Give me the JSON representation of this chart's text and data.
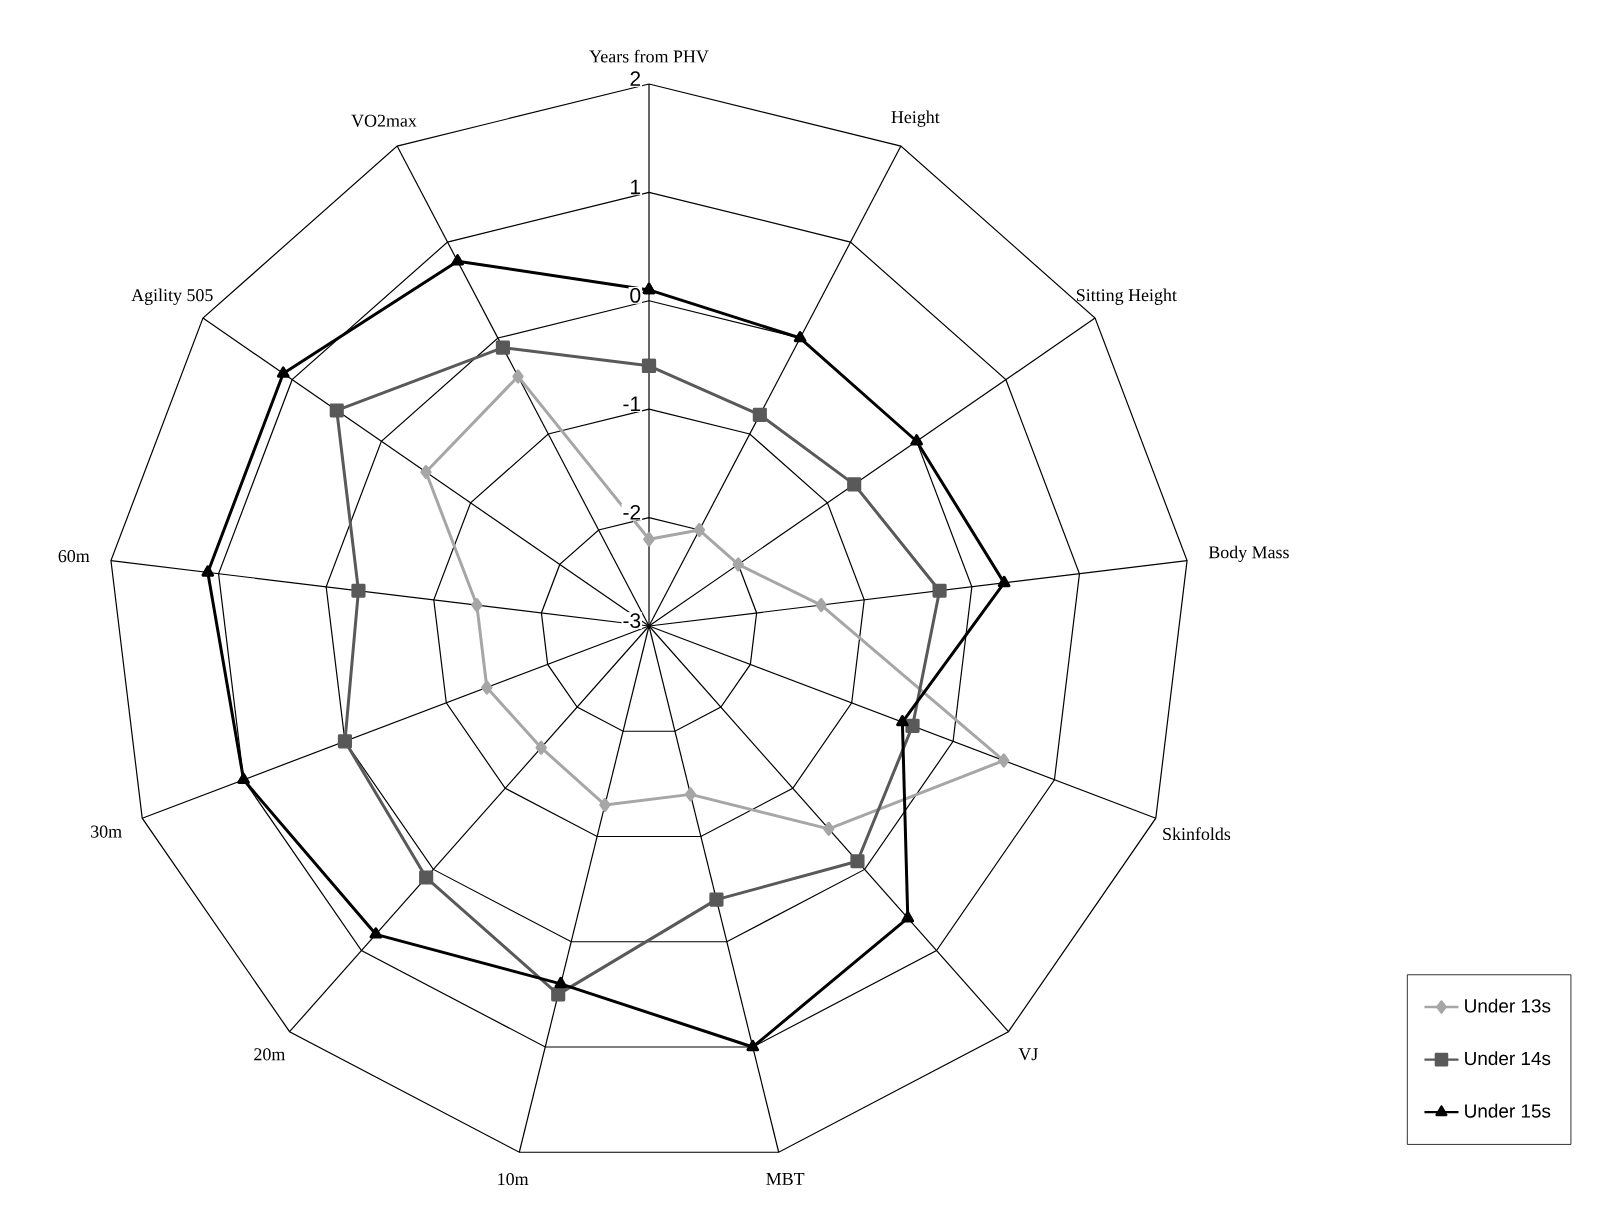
{
  "chart_data": {
    "type": "radar",
    "categories": [
      "Years from PHV",
      "Height",
      "Sitting Height",
      "Body Mass",
      "Skinfolds",
      "VJ",
      "MBT",
      "10m",
      "20m",
      "30m",
      "60m",
      "Agility 505",
      "VO2max"
    ],
    "series": [
      {
        "name": "Under 13s",
        "color": "#a6a6a6",
        "marker": "diamond",
        "values": [
          -2.2,
          -2.0,
          -2.0,
          -1.4,
          0.5,
          -0.5,
          -1.4,
          -1.3,
          -1.5,
          -1.4,
          -1.4,
          -0.5,
          -0.4
        ]
      },
      {
        "name": "Under 14s",
        "color": "#595959",
        "marker": "square",
        "values": [
          -0.6,
          -0.8,
          -0.7,
          -0.3,
          -0.4,
          -0.1,
          -0.4,
          0.5,
          0.1,
          0.0,
          -0.3,
          0.5,
          -0.1
        ]
      },
      {
        "name": "Under 15s",
        "color": "#000000",
        "marker": "triangle",
        "values": [
          0.1,
          0.0,
          0.0,
          0.3,
          -0.5,
          0.6,
          1.0,
          0.4,
          0.8,
          1.0,
          1.1,
          1.1,
          0.8
        ]
      }
    ],
    "ylim": [
      -3,
      2
    ],
    "yticks": [
      -3,
      -2,
      -1,
      0,
      1,
      2
    ],
    "grid": true,
    "legend": "bottom right"
  }
}
